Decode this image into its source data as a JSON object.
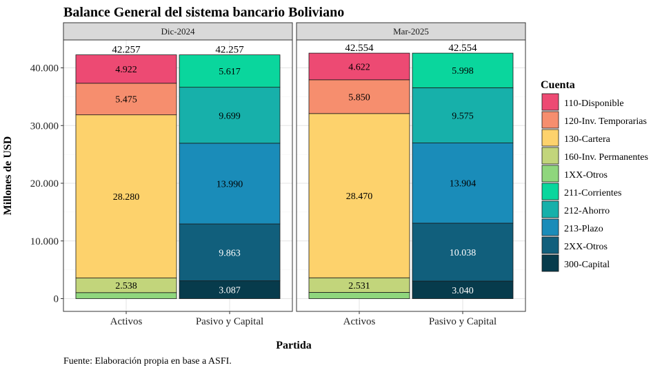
{
  "chart_data": {
    "type": "bar",
    "stacked": true,
    "title": "Balance General del sistema bancario Boliviano",
    "ylabel": "Millones de USD",
    "xlabel": "Partida",
    "caption": "Fuente: Elaboración propia en base a ASFI.",
    "ylim": [
      0,
      42554
    ],
    "yticks": [
      0,
      10000,
      20000,
      30000,
      40000
    ],
    "ytick_labels": [
      "0",
      "10.000",
      "20.000",
      "30.000",
      "40.000"
    ],
    "categories": [
      "Activos",
      "Pasivo y Capital"
    ],
    "legend_title": "Cuenta",
    "legend_position": "right",
    "grid": true,
    "accounts": [
      {
        "name": "110-Disponible",
        "color": "#ED4A73"
      },
      {
        "name": "120-Inv. Temporarias",
        "color": "#F68E6E"
      },
      {
        "name": "130-Cartera",
        "color": "#FDD26C"
      },
      {
        "name": "160-Inv. Permanentes",
        "color": "#C2D57B"
      },
      {
        "name": "1XX-Otros",
        "color": "#8FD67D"
      },
      {
        "name": "211-Corrientes",
        "color": "#0AD69D"
      },
      {
        "name": "212-Ahorro",
        "color": "#17B0AA"
      },
      {
        "name": "213-Plazo",
        "color": "#1A8CB9"
      },
      {
        "name": "2XX-Otros",
        "color": "#115F7C"
      },
      {
        "name": "300-Capital",
        "color": "#073B4C"
      }
    ],
    "panels": [
      {
        "label": "Dic-2024",
        "bars": [
          {
            "category": "Activos",
            "total": 42257,
            "total_label": "42.257",
            "segments": [
              {
                "account": "110-Disponible",
                "value": 4922,
                "label": "4.922"
              },
              {
                "account": "120-Inv. Temporarias",
                "value": 5475,
                "label": "5.475"
              },
              {
                "account": "130-Cartera",
                "value": 28280,
                "label": "28.280"
              },
              {
                "account": "160-Inv. Permanentes",
                "value": 2538,
                "label": "2.538"
              },
              {
                "account": "1XX-Otros",
                "value": 1042,
                "label": ""
              }
            ]
          },
          {
            "category": "Pasivo y Capital",
            "total": 42257,
            "total_label": "42.257",
            "segments": [
              {
                "account": "211-Corrientes",
                "value": 5617,
                "label": "5.617"
              },
              {
                "account": "212-Ahorro",
                "value": 9699,
                "label": "9.699"
              },
              {
                "account": "213-Plazo",
                "value": 13990,
                "label": "13.990"
              },
              {
                "account": "2XX-Otros",
                "value": 9863,
                "label": "9.863"
              },
              {
                "account": "300-Capital",
                "value": 3087,
                "label": "3.087"
              }
            ]
          }
        ]
      },
      {
        "label": "Mar-2025",
        "bars": [
          {
            "category": "Activos",
            "total": 42554,
            "total_label": "42.554",
            "segments": [
              {
                "account": "110-Disponible",
                "value": 4622,
                "label": "4.622"
              },
              {
                "account": "120-Inv. Temporarias",
                "value": 5850,
                "label": "5.850"
              },
              {
                "account": "130-Cartera",
                "value": 28470,
                "label": "28.470"
              },
              {
                "account": "160-Inv. Permanentes",
                "value": 2531,
                "label": "2.531"
              },
              {
                "account": "1XX-Otros",
                "value": 1081,
                "label": ""
              }
            ]
          },
          {
            "category": "Pasivo y Capital",
            "total": 42554,
            "total_label": "42.554",
            "segments": [
              {
                "account": "211-Corrientes",
                "value": 5998,
                "label": "5.998"
              },
              {
                "account": "212-Ahorro",
                "value": 9575,
                "label": "9.575"
              },
              {
                "account": "213-Plazo",
                "value": 13904,
                "label": "13.904"
              },
              {
                "account": "2XX-Otros",
                "value": 10038,
                "label": "10.038"
              },
              {
                "account": "300-Capital",
                "value": 3040,
                "label": "3.040"
              }
            ]
          }
        ]
      }
    ]
  }
}
